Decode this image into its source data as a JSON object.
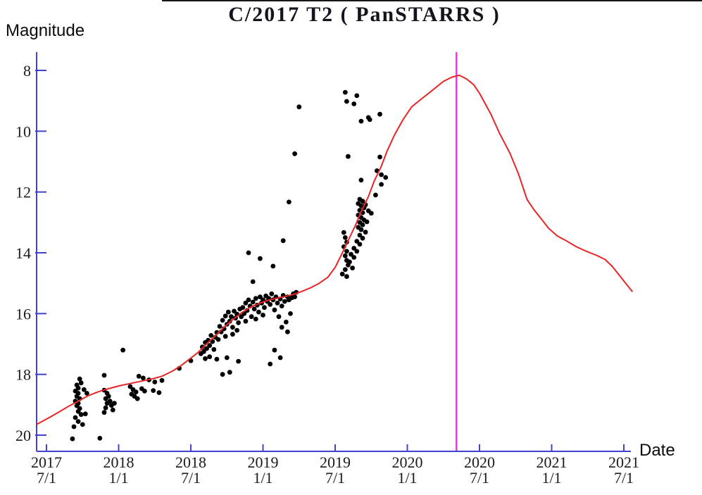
{
  "chart_data": {
    "type": "scatter",
    "title": "C/2017 T2 ( PanSTARRS )",
    "ylabel": "Magnitude",
    "xlabel": "Date",
    "y_axis": {
      "label": "Magnitude",
      "min": 8,
      "max": 20,
      "inverted": true,
      "ticks": [
        8,
        10,
        12,
        14,
        16,
        18,
        20
      ]
    },
    "x_axis": {
      "label": "Date",
      "ticks": [
        {
          "value": 2017.5,
          "year": "2017",
          "day": "7/1"
        },
        {
          "value": 2018.0,
          "year": "2018",
          "day": "1/1"
        },
        {
          "value": 2018.5,
          "year": "2018",
          "day": "7/1"
        },
        {
          "value": 2019.0,
          "year": "2019",
          "day": "1/1"
        },
        {
          "value": 2019.5,
          "year": "2019",
          "day": "7/1"
        },
        {
          "value": 2020.0,
          "year": "2020",
          "day": "1/1"
        },
        {
          "value": 2020.5,
          "year": "2020",
          "day": "7/1"
        },
        {
          "value": 2021.0,
          "year": "2021",
          "day": "1/1"
        },
        {
          "value": 2021.5,
          "year": "2021",
          "day": "7/1"
        }
      ]
    },
    "perihelion_marker": {
      "value": 2020.34
    },
    "colors": {
      "axis": "#4141cd",
      "points": "#000000",
      "curve": "#e82525",
      "marker": "#ff2bff",
      "tick_text": "#1b1b1b"
    },
    "legend": false,
    "grid": false,
    "series": [
      {
        "name": "observations",
        "type": "scatter",
        "points": [
          [
            2017.73,
            18.15
          ],
          [
            2017.74,
            18.28
          ],
          [
            2017.71,
            18.35
          ],
          [
            2017.72,
            18.45
          ],
          [
            2017.7,
            18.55
          ],
          [
            2017.72,
            18.62
          ],
          [
            2017.71,
            18.72
          ],
          [
            2017.73,
            18.8
          ],
          [
            2017.7,
            18.88
          ],
          [
            2017.72,
            18.95
          ],
          [
            2017.71,
            19.03
          ],
          [
            2017.73,
            19.12
          ],
          [
            2017.72,
            19.22
          ],
          [
            2017.74,
            19.32
          ],
          [
            2017.7,
            19.42
          ],
          [
            2017.72,
            19.55
          ],
          [
            2017.75,
            19.65
          ],
          [
            2017.69,
            19.72
          ],
          [
            2017.68,
            20.12
          ],
          [
            2017.87,
            20.1
          ],
          [
            2017.76,
            18.5
          ],
          [
            2017.78,
            18.62
          ],
          [
            2017.77,
            19.3
          ],
          [
            2017.9,
            18.03
          ],
          [
            2017.9,
            18.52
          ],
          [
            2017.92,
            18.62
          ],
          [
            2017.93,
            18.72
          ],
          [
            2017.91,
            18.8
          ],
          [
            2017.94,
            18.88
          ],
          [
            2017.92,
            18.95
          ],
          [
            2017.95,
            19.02
          ],
          [
            2017.91,
            19.1
          ],
          [
            2017.96,
            19.17
          ],
          [
            2017.9,
            19.25
          ],
          [
            2017.97,
            18.95
          ],
          [
            2018.08,
            18.4
          ],
          [
            2018.1,
            18.5
          ],
          [
            2018.12,
            18.58
          ],
          [
            2018.09,
            18.65
          ],
          [
            2018.11,
            18.72
          ],
          [
            2018.13,
            18.8
          ],
          [
            2018.16,
            18.47
          ],
          [
            2018.18,
            18.55
          ],
          [
            2018.14,
            18.06
          ],
          [
            2018.17,
            18.12
          ],
          [
            2018.21,
            18.18
          ],
          [
            2018.25,
            18.25
          ],
          [
            2018.28,
            18.6
          ],
          [
            2018.24,
            18.53
          ],
          [
            2018.3,
            18.2
          ],
          [
            2018.03,
            17.2
          ],
          [
            2018.42,
            17.8
          ],
          [
            2018.5,
            17.55
          ],
          [
            2018.57,
            17.32
          ],
          [
            2018.58,
            17.1
          ],
          [
            2018.59,
            17.25
          ],
          [
            2018.6,
            16.95
          ],
          [
            2018.61,
            17.15
          ],
          [
            2018.62,
            16.88
          ],
          [
            2018.63,
            17.05
          ],
          [
            2018.64,
            16.72
          ],
          [
            2018.65,
            16.92
          ],
          [
            2018.66,
            17.18
          ],
          [
            2018.67,
            16.78
          ],
          [
            2018.68,
            16.62
          ],
          [
            2018.69,
            16.85
          ],
          [
            2018.6,
            17.48
          ],
          [
            2018.63,
            17.42
          ],
          [
            2018.68,
            17.5
          ],
          [
            2018.75,
            17.45
          ],
          [
            2018.83,
            17.57
          ],
          [
            2018.7,
            16.42
          ],
          [
            2018.71,
            16.6
          ],
          [
            2018.72,
            16.22
          ],
          [
            2018.73,
            16.5
          ],
          [
            2018.74,
            16.08
          ],
          [
            2018.75,
            16.35
          ],
          [
            2018.76,
            15.95
          ],
          [
            2018.77,
            16.25
          ],
          [
            2018.78,
            16.1
          ],
          [
            2018.79,
            16.45
          ],
          [
            2018.8,
            15.92
          ],
          [
            2018.81,
            16.15
          ],
          [
            2018.82,
            16.02
          ],
          [
            2018.83,
            16.3
          ],
          [
            2018.84,
            15.85
          ],
          [
            2018.85,
            16.1
          ],
          [
            2018.72,
            18.0
          ],
          [
            2018.77,
            17.93
          ],
          [
            2018.74,
            16.75
          ],
          [
            2018.79,
            16.68
          ],
          [
            2018.82,
            16.55
          ],
          [
            2018.86,
            15.8
          ],
          [
            2018.87,
            16.0
          ],
          [
            2018.88,
            15.65
          ],
          [
            2018.89,
            15.9
          ],
          [
            2018.9,
            15.55
          ],
          [
            2018.91,
            15.75
          ],
          [
            2018.92,
            16.1
          ],
          [
            2018.93,
            15.62
          ],
          [
            2018.94,
            15.85
          ],
          [
            2018.95,
            15.5
          ],
          [
            2018.96,
            15.72
          ],
          [
            2018.97,
            15.95
          ],
          [
            2018.98,
            15.45
          ],
          [
            2018.99,
            15.65
          ],
          [
            2019.0,
            15.55
          ],
          [
            2019.01,
            15.8
          ],
          [
            2019.02,
            15.42
          ],
          [
            2019.03,
            15.6
          ],
          [
            2018.9,
            14.0
          ],
          [
            2018.98,
            14.19
          ],
          [
            2018.93,
            14.95
          ],
          [
            2018.88,
            16.25
          ],
          [
            2018.95,
            16.18
          ],
          [
            2019.0,
            16.05
          ],
          [
            2019.04,
            15.5
          ],
          [
            2019.05,
            15.7
          ],
          [
            2019.06,
            15.35
          ],
          [
            2019.07,
            15.55
          ],
          [
            2019.08,
            15.88
          ],
          [
            2019.09,
            15.45
          ],
          [
            2019.1,
            15.65
          ],
          [
            2019.11,
            16.1
          ],
          [
            2019.12,
            15.52
          ],
          [
            2019.13,
            15.75
          ],
          [
            2019.14,
            15.4
          ],
          [
            2019.15,
            15.6
          ],
          [
            2019.16,
            16.28
          ],
          [
            2019.17,
            15.45
          ],
          [
            2019.18,
            15.55
          ],
          [
            2019.19,
            16.0
          ],
          [
            2019.2,
            15.48
          ],
          [
            2019.21,
            15.35
          ],
          [
            2019.22,
            15.45
          ],
          [
            2019.23,
            15.3
          ],
          [
            2019.07,
            14.44
          ],
          [
            2019.13,
            16.45
          ],
          [
            2019.17,
            16.6
          ],
          [
            2019.08,
            17.2
          ],
          [
            2019.12,
            17.45
          ],
          [
            2019.05,
            17.66
          ],
          [
            2019.25,
            9.2
          ],
          [
            2019.22,
            10.74
          ],
          [
            2019.18,
            12.33
          ],
          [
            2019.14,
            13.6
          ],
          [
            2019.56,
            13.33
          ],
          [
            2019.57,
            13.5
          ],
          [
            2019.58,
            13.65
          ],
          [
            2019.56,
            13.8
          ],
          [
            2019.58,
            13.95
          ],
          [
            2019.57,
            14.1
          ],
          [
            2019.58,
            14.25
          ],
          [
            2019.59,
            14.4
          ],
          [
            2019.57,
            14.55
          ],
          [
            2019.58,
            14.78
          ],
          [
            2019.55,
            14.7
          ],
          [
            2019.67,
            12.24
          ],
          [
            2019.69,
            12.3
          ],
          [
            2019.66,
            12.38
          ],
          [
            2019.68,
            12.45
          ],
          [
            2019.7,
            12.52
          ],
          [
            2019.67,
            12.6
          ],
          [
            2019.69,
            12.68
          ],
          [
            2019.71,
            12.42
          ],
          [
            2019.66,
            12.76
          ],
          [
            2019.68,
            12.84
          ],
          [
            2019.7,
            12.92
          ],
          [
            2019.67,
            13.0
          ],
          [
            2019.69,
            13.08
          ],
          [
            2019.72,
            12.98
          ],
          [
            2019.66,
            13.16
          ],
          [
            2019.68,
            13.24
          ],
          [
            2019.71,
            13.32
          ],
          [
            2019.67,
            13.42
          ],
          [
            2019.69,
            13.52
          ],
          [
            2019.65,
            13.62
          ],
          [
            2019.67,
            13.72
          ],
          [
            2019.63,
            13.85
          ],
          [
            2019.65,
            13.95
          ],
          [
            2019.61,
            14.05
          ],
          [
            2019.63,
            14.15
          ],
          [
            2019.6,
            14.3
          ],
          [
            2019.62,
            14.5
          ],
          [
            2019.73,
            12.62
          ],
          [
            2019.75,
            12.7
          ],
          [
            2019.78,
            12.1
          ],
          [
            2019.57,
            8.72
          ],
          [
            2019.65,
            8.83
          ],
          [
            2019.58,
            9.02
          ],
          [
            2019.63,
            9.1
          ],
          [
            2019.81,
            9.44
          ],
          [
            2019.73,
            9.55
          ],
          [
            2019.74,
            9.62
          ],
          [
            2019.68,
            9.67
          ],
          [
            2019.59,
            10.83
          ],
          [
            2019.81,
            10.85
          ],
          [
            2019.82,
            11.43
          ],
          [
            2019.68,
            11.61
          ],
          [
            2019.82,
            11.75
          ],
          [
            2019.85,
            11.52
          ],
          [
            2019.79,
            11.3
          ]
        ]
      },
      {
        "name": "predicted-light-curve",
        "type": "line",
        "points": [
          [
            2017.43,
            19.65
          ],
          [
            2017.52,
            19.42
          ],
          [
            2017.6,
            19.2
          ],
          [
            2017.66,
            19.03
          ],
          [
            2017.72,
            18.88
          ],
          [
            2017.79,
            18.7
          ],
          [
            2017.86,
            18.57
          ],
          [
            2017.93,
            18.47
          ],
          [
            2018.0,
            18.38
          ],
          [
            2018.08,
            18.3
          ],
          [
            2018.16,
            18.22
          ],
          [
            2018.23,
            18.15
          ],
          [
            2018.3,
            18.06
          ],
          [
            2018.37,
            17.9
          ],
          [
            2018.43,
            17.72
          ],
          [
            2018.49,
            17.5
          ],
          [
            2018.55,
            17.28
          ],
          [
            2018.61,
            17.0
          ],
          [
            2018.67,
            16.73
          ],
          [
            2018.73,
            16.45
          ],
          [
            2018.79,
            16.2
          ],
          [
            2018.85,
            15.98
          ],
          [
            2018.91,
            15.8
          ],
          [
            2018.97,
            15.67
          ],
          [
            2019.03,
            15.57
          ],
          [
            2019.09,
            15.5
          ],
          [
            2019.15,
            15.44
          ],
          [
            2019.21,
            15.37
          ],
          [
            2019.27,
            15.27
          ],
          [
            2019.33,
            15.15
          ],
          [
            2019.39,
            15.0
          ],
          [
            2019.45,
            14.8
          ],
          [
            2019.5,
            14.48
          ],
          [
            2019.54,
            14.1
          ],
          [
            2019.59,
            13.6
          ],
          [
            2019.64,
            13.1
          ],
          [
            2019.68,
            12.65
          ],
          [
            2019.73,
            12.15
          ],
          [
            2019.77,
            11.65
          ],
          [
            2019.82,
            11.15
          ],
          [
            2019.86,
            10.65
          ],
          [
            2019.91,
            10.13
          ],
          [
            2019.97,
            9.62
          ],
          [
            2020.03,
            9.2
          ],
          [
            2020.1,
            8.93
          ],
          [
            2020.18,
            8.63
          ],
          [
            2020.25,
            8.36
          ],
          [
            2020.31,
            8.22
          ],
          [
            2020.36,
            8.16
          ],
          [
            2020.41,
            8.28
          ],
          [
            2020.46,
            8.47
          ],
          [
            2020.5,
            8.75
          ],
          [
            2020.54,
            9.1
          ],
          [
            2020.58,
            9.45
          ],
          [
            2020.64,
            10.08
          ],
          [
            2020.71,
            10.72
          ],
          [
            2020.77,
            11.4
          ],
          [
            2020.83,
            12.25
          ],
          [
            2020.88,
            12.6
          ],
          [
            2020.93,
            12.9
          ],
          [
            2020.98,
            13.2
          ],
          [
            2021.04,
            13.45
          ],
          [
            2021.1,
            13.6
          ],
          [
            2021.17,
            13.8
          ],
          [
            2021.24,
            13.95
          ],
          [
            2021.31,
            14.08
          ],
          [
            2021.37,
            14.22
          ],
          [
            2021.42,
            14.45
          ],
          [
            2021.47,
            14.75
          ],
          [
            2021.52,
            15.05
          ],
          [
            2021.56,
            15.28
          ]
        ]
      }
    ]
  }
}
